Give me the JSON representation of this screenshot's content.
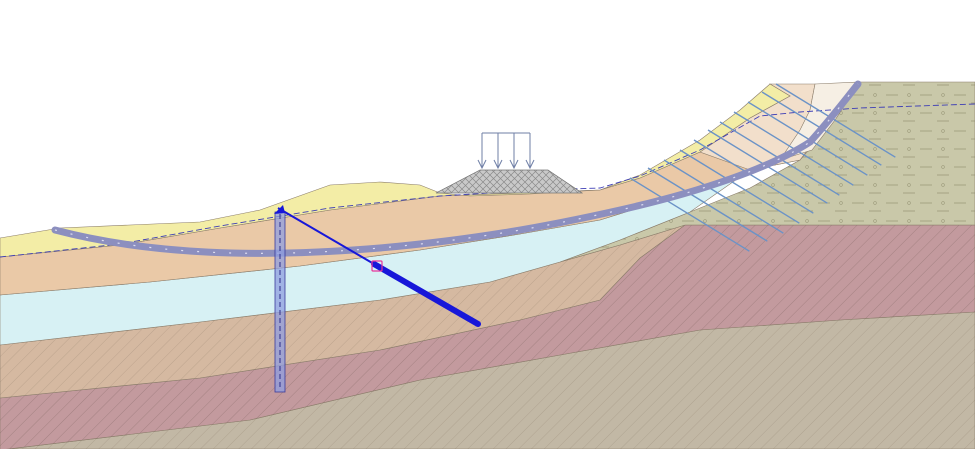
{
  "view": {
    "title": ""
  },
  "colors": {
    "background": "#ffffff",
    "layer_yellow": "#f3eda6",
    "layer_peach": "#eac9a7",
    "layer_light_peach": "#f2dfcb",
    "layer_cyan": "#d7f1f4",
    "layer_olive": "#c9c8a9",
    "layer_tan": "#d5b9a1",
    "layer_maroon": "#c39a9e",
    "layer_gray_tan": "#c2b8a5",
    "layer_cream": "#f6efe4",
    "slip_surface": "#8c8fbf",
    "anchor": "#1717d9",
    "nails": "#6b93c7",
    "pile": "#8f9de0",
    "load": "#6f7fa6",
    "embankment": "#c9c9c9"
  },
  "icons": {
    "distributed_load": "arrow-down-icon",
    "anchor_head": "anchor-head-icon"
  }
}
